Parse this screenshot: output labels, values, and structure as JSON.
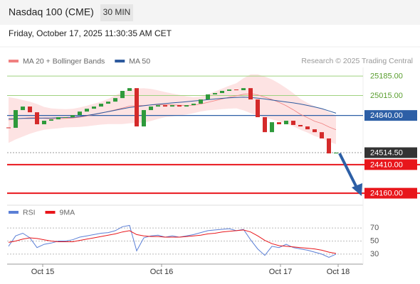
{
  "header": {
    "title": "Nasdaq 100 (CME)",
    "interval": "30 MIN",
    "timestamp": "Friday, October 17, 2025 11:30:35 AM CET"
  },
  "chart_data": [
    {
      "type": "candlestick",
      "legend": [
        "MA 20 + Bollinger Bands",
        "MA 50"
      ],
      "credit": "Research © 2025 Trading Central",
      "ylim": [
        24080,
        25260
      ],
      "xlim": [
        -0.2,
        49.8
      ],
      "up_color": "#2e9a3b",
      "down_color": "#d42a2a",
      "close": [
        24732,
        24887,
        24918,
        24868,
        24763,
        24794,
        24806,
        24825,
        24825,
        24843,
        24874,
        24899,
        24918,
        24943,
        24961,
        24992,
        25055,
        25079,
        24744,
        24887,
        24918,
        24930,
        24918,
        24930,
        24918,
        24930,
        24943,
        24980,
        25024,
        25036,
        25055,
        25067,
        25061,
        25079,
        24980,
        24825,
        24694,
        24781,
        24763,
        24794,
        24757,
        24744,
        24719,
        24694,
        24639,
        24508,
        24515
      ],
      "series": [
        {
          "name": "MA 20 + Bollinger Bands",
          "color": "#f08080",
          "values": [
            24800,
            24810,
            24815,
            24820,
            24820,
            24815,
            24812,
            24812,
            24815,
            24818,
            24825,
            24835,
            24848,
            24860,
            24875,
            24890,
            24905,
            24922,
            24925,
            24928,
            24932,
            24935,
            24935,
            24932,
            24930,
            24928,
            24930,
            24940,
            24955,
            24970,
            24985,
            25000,
            25012,
            25025,
            25030,
            25020,
            25000,
            24980,
            24955,
            24925,
            24890,
            24850,
            24820,
            24790,
            24770,
            24740,
            24715
          ],
          "upper": [
            25000,
            24990,
            24975,
            24960,
            24940,
            24915,
            24902,
            24897,
            24895,
            24898,
            24910,
            24925,
            24943,
            24960,
            24985,
            25015,
            25045,
            25072,
            25075,
            25078,
            25072,
            25060,
            25045,
            25032,
            25020,
            25008,
            25000,
            25005,
            25025,
            25050,
            25075,
            25100,
            25122,
            25165,
            25200,
            25200,
            25180,
            25155,
            25120,
            25080,
            25035,
            24985,
            24950,
            24920,
            24900,
            24870,
            24840
          ],
          "lower": [
            24600,
            24630,
            24655,
            24680,
            24700,
            24715,
            24722,
            24727,
            24735,
            24738,
            24740,
            24745,
            24753,
            24760,
            24765,
            24765,
            24765,
            24772,
            24775,
            24778,
            24792,
            24810,
            24825,
            24832,
            24840,
            24848,
            24860,
            24875,
            24885,
            24890,
            24895,
            24900,
            24902,
            24885,
            24860,
            24840,
            24820,
            24805,
            24790,
            24770,
            24745,
            24715,
            24690,
            24660,
            24640,
            24610,
            24590
          ],
          "band_color": "#fde3e3"
        },
        {
          "name": "MA 50",
          "color": "#2d5a9e",
          "values": [
            24810,
            24812,
            24814,
            24815,
            24816,
            24817,
            24818,
            24820,
            24822,
            24824,
            24830,
            24840,
            24850,
            24862,
            24874,
            24886,
            24898,
            24910,
            24918,
            24925,
            24932,
            24938,
            24944,
            24950,
            24955,
            24960,
            24966,
            24972,
            24978,
            24984,
            24990,
            24995,
            24998,
            25000,
            24998,
            24992,
            24984,
            24975,
            24966,
            24958,
            24950,
            24940,
            24928,
            24915,
            24900,
            24880,
            24860
          ]
        }
      ],
      "levels": [
        {
          "value": 25185,
          "label": "25185.00",
          "color": "#9fd27f",
          "text_color": "#5a9e2f",
          "style": "thin"
        },
        {
          "value": 25015,
          "label": "25015.00",
          "color": "#9fd27f",
          "text_color": "#5a9e2f",
          "style": "thin"
        },
        {
          "value": 24840,
          "label": "24840.00",
          "color": "#2d5fa6",
          "text_color": "#ffffff",
          "style": "solid"
        },
        {
          "value": 24514.5,
          "label": "24514.50",
          "color": "#333333",
          "text_color": "#ffffff",
          "style": "dotted"
        },
        {
          "value": 24410,
          "label": "24410.00",
          "color": "#e8161b",
          "text_color": "#ffffff",
          "style": "bold"
        },
        {
          "value": 24160,
          "label": "24160.00",
          "color": "#e8161b",
          "text_color": "#ffffff",
          "style": "bold"
        }
      ]
    },
    {
      "type": "line",
      "ylim": [
        19,
        80
      ],
      "xlim": [
        -0.2,
        49.8
      ],
      "yticks": [
        70,
        50,
        30
      ],
      "xticks": [
        {
          "value": 4.8,
          "label": "Oct 15"
        },
        {
          "value": 21.5,
          "label": "Oct 16"
        },
        {
          "value": 38.2,
          "label": "Oct 17"
        },
        {
          "value": 46.3,
          "label": "Oct 18"
        }
      ],
      "series": [
        {
          "name": "RSI",
          "color": "#5b7fd6",
          "values": [
            42,
            58,
            62,
            55,
            40,
            45,
            47,
            50,
            50,
            52,
            56,
            58,
            60,
            62,
            63,
            66,
            72,
            74,
            35,
            55,
            58,
            59,
            56,
            58,
            56,
            58,
            60,
            63,
            66,
            67,
            68,
            69,
            66,
            68,
            52,
            38,
            28,
            42,
            40,
            45,
            40,
            38,
            36,
            33,
            30,
            25,
            30
          ]
        },
        {
          "name": "9MA",
          "color": "#e8161b",
          "values": [
            48,
            50,
            53,
            55,
            54,
            52,
            50,
            49,
            49,
            49,
            51,
            53,
            55,
            57,
            59,
            61,
            64,
            66,
            60,
            58,
            57,
            57,
            56,
            56,
            56,
            57,
            58,
            59,
            61,
            62,
            64,
            65,
            66,
            67,
            64,
            58,
            51,
            46,
            43,
            42,
            41,
            40,
            39,
            38,
            36,
            33,
            31
          ]
        }
      ]
    }
  ]
}
